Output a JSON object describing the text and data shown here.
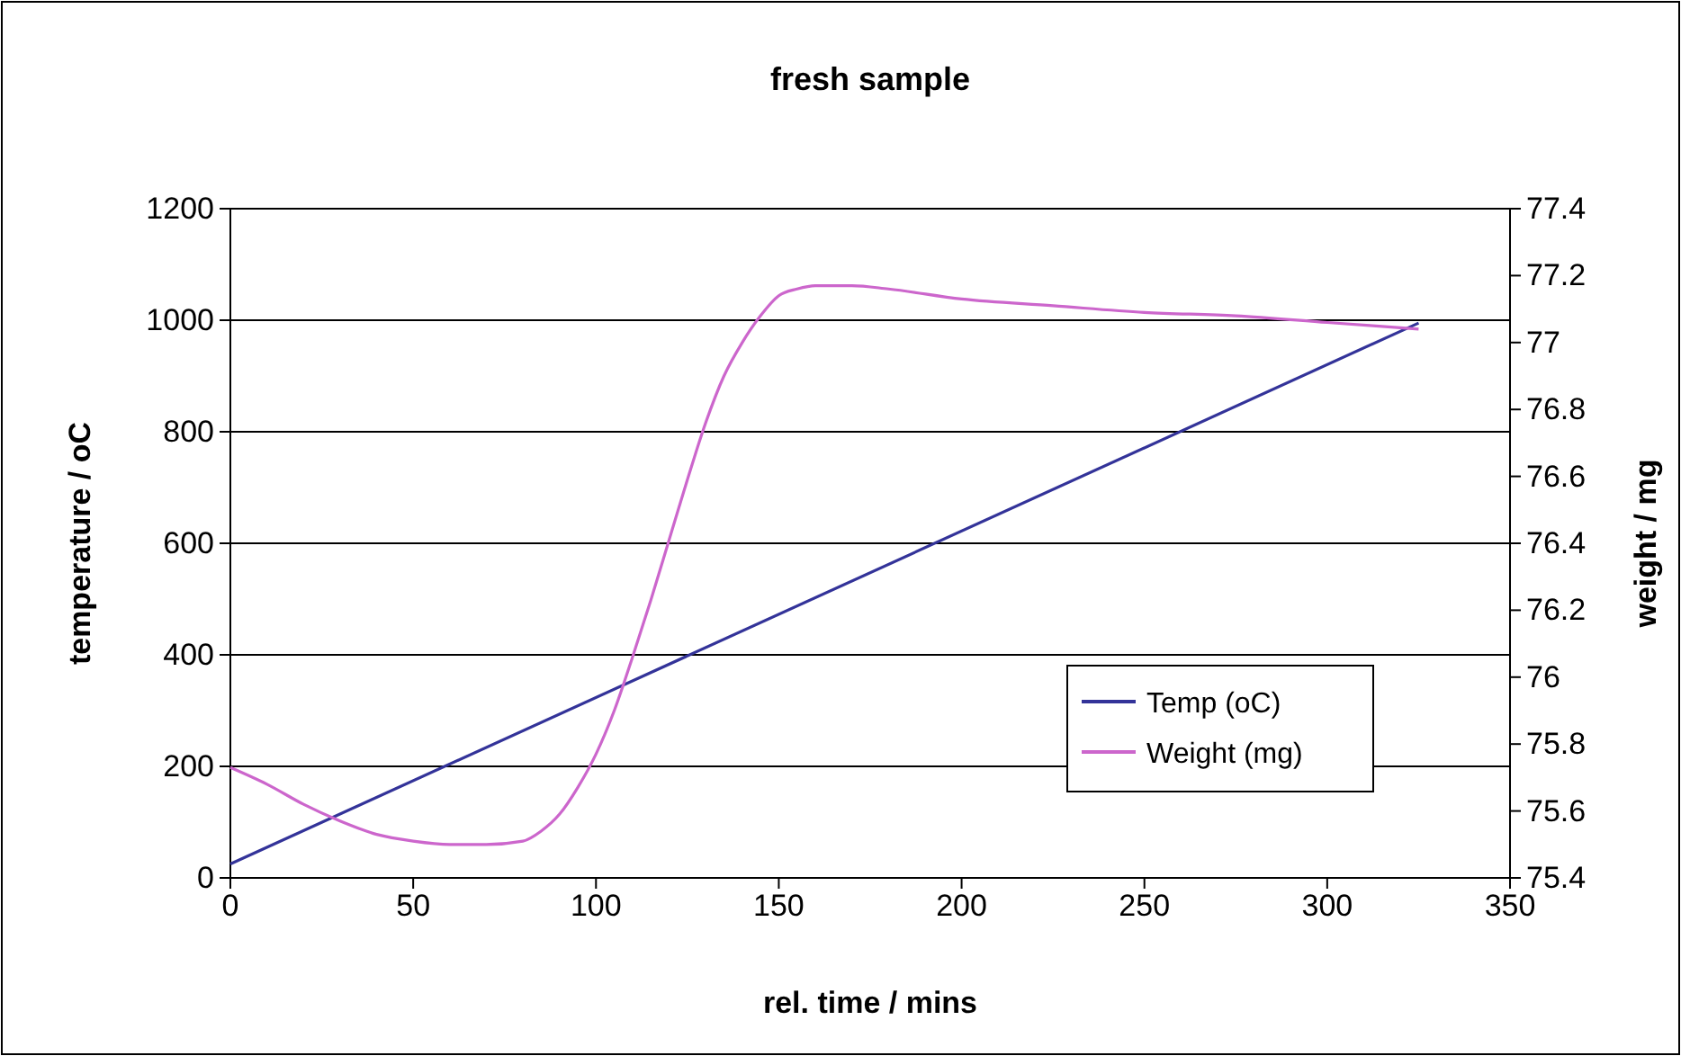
{
  "chart_data": {
    "type": "line",
    "title": "fresh sample",
    "xlabel": "rel. time / mins",
    "ylabel": "temperature / oC",
    "y2label": "weight / mg",
    "xlim": [
      0,
      350
    ],
    "xticks": [
      0,
      50,
      100,
      150,
      200,
      250,
      300,
      350
    ],
    "ylim": [
      0,
      1200
    ],
    "yticks": [
      0,
      200,
      400,
      600,
      800,
      1000,
      1200
    ],
    "y2lim": [
      75.4,
      77.4
    ],
    "y2ticks": [
      75.4,
      75.6,
      75.8,
      76,
      76.2,
      76.4,
      76.6,
      76.8,
      77,
      77.2,
      77.4
    ],
    "grid": "y",
    "legend": "bottom right",
    "series": [
      {
        "name": "Temp (oC)",
        "color": "#333399",
        "x": [
          0,
          325
        ],
        "values": [
          25,
          995
        ]
      },
      {
        "name": "Weight (mg)",
        "color": "#cc66cc",
        "axis": "y2",
        "x": [
          0,
          10,
          20,
          30,
          40,
          50,
          60,
          70,
          80,
          85,
          90,
          95,
          100,
          105,
          110,
          115,
          120,
          125,
          130,
          135,
          140,
          145,
          150,
          155,
          160,
          170,
          180,
          200,
          225,
          250,
          275,
          300,
          325
        ],
        "values": [
          75.73,
          75.68,
          75.62,
          75.57,
          75.53,
          75.51,
          75.5,
          75.5,
          75.51,
          75.54,
          75.59,
          75.67,
          75.77,
          75.9,
          76.06,
          76.23,
          76.41,
          76.59,
          76.76,
          76.9,
          77.0,
          77.08,
          77.14,
          77.16,
          77.17,
          77.17,
          77.16,
          77.13,
          77.11,
          77.09,
          77.08,
          77.06,
          77.04
        ]
      }
    ]
  }
}
